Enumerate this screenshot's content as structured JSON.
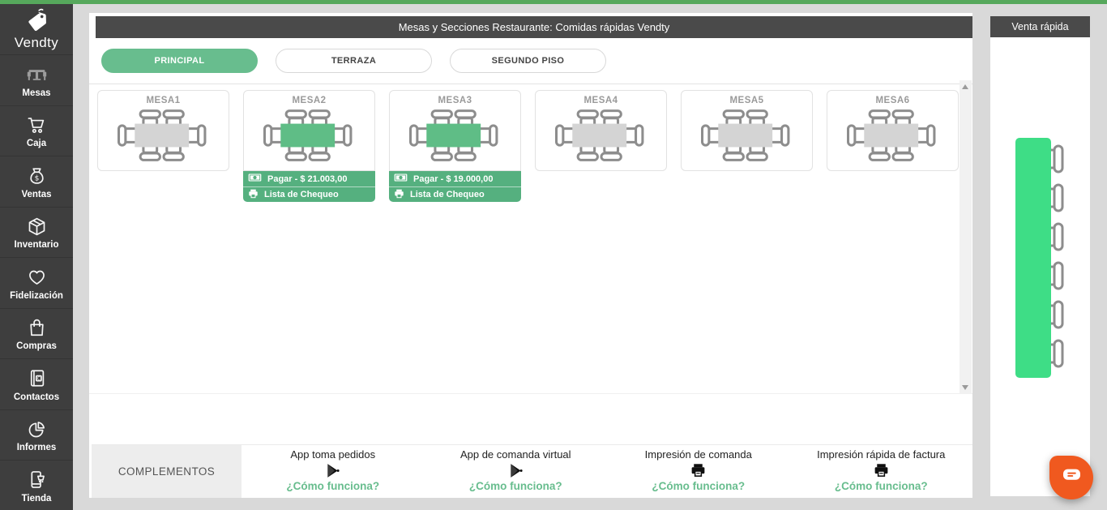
{
  "colors": {
    "accent_green": "#68bd8e",
    "occupied_table_green": "#5fbd86",
    "bright_green": "#3edd86",
    "top_strip_green": "#56a85c",
    "dark_bar": "#4a4a4a",
    "sidebar_bg": "#3e3e3e",
    "chat_orange": "#f0591f"
  },
  "header": {
    "title": "Mesas y Secciones Restaurante: Comidas rápidas Vendty"
  },
  "sidebar": {
    "brand": "Vendty",
    "brand_icon": "price-tag-icon",
    "items": [
      {
        "id": "mesas",
        "label": "Mesas",
        "icon": "table-icon",
        "active": true
      },
      {
        "id": "caja",
        "label": "Caja",
        "icon": "cart-icon",
        "active": false
      },
      {
        "id": "ventas",
        "label": "Ventas",
        "icon": "money-bag-icon",
        "active": false
      },
      {
        "id": "inventario",
        "label": "Inventario",
        "icon": "box-icon",
        "active": false
      },
      {
        "id": "fidelizacion",
        "label": "Fidelización",
        "icon": "heart-icon",
        "active": false
      },
      {
        "id": "compras",
        "label": "Compras",
        "icon": "shopping-bag-icon",
        "active": false
      },
      {
        "id": "contactos",
        "label": "Contactos",
        "icon": "contact-book-icon",
        "active": false
      },
      {
        "id": "informes",
        "label": "Informes",
        "icon": "pie-chart-icon",
        "active": false
      },
      {
        "id": "tienda",
        "label": "Tienda",
        "icon": "phone-store-icon",
        "active": false
      }
    ]
  },
  "sections": {
    "tabs": [
      {
        "label": "PRINCIPAL",
        "active": true
      },
      {
        "label": "TERRAZA",
        "active": false
      },
      {
        "label": "SEGUNDO PISO",
        "active": false
      }
    ]
  },
  "tables": [
    {
      "name": "MESA1",
      "occupied": false
    },
    {
      "name": "MESA2",
      "occupied": true,
      "actions": {
        "pay": "Pagar - $ 21.003,00",
        "checklist": "Lista de Chequeo",
        "pay_icon": "banknote-icon",
        "checklist_icon": "printer-icon"
      }
    },
    {
      "name": "MESA3",
      "occupied": true,
      "actions": {
        "pay": "Pagar - $ 19.000,00",
        "checklist": "Lista de Chequeo",
        "pay_icon": "banknote-icon",
        "checklist_icon": "printer-icon"
      }
    },
    {
      "name": "MESA4",
      "occupied": false
    },
    {
      "name": "MESA5",
      "occupied": false
    },
    {
      "name": "MESA6",
      "occupied": false
    }
  ],
  "quick_sale": {
    "title": "Venta rápida",
    "seats": 6
  },
  "complements": {
    "header": "COMPLEMENTOS",
    "items": [
      {
        "title": "App toma pedidos",
        "icon": "play",
        "link": "¿Cómo funciona?"
      },
      {
        "title": "App de comanda virtual",
        "icon": "play",
        "link": "¿Cómo funciona?"
      },
      {
        "title": "Impresión de comanda",
        "icon": "printer",
        "link": "¿Cómo funciona?"
      },
      {
        "title": "Impresión rápida de factura",
        "icon": "printer",
        "link": "¿Cómo funciona?"
      }
    ]
  },
  "chat": {
    "icon": "chat-bubble-icon"
  }
}
